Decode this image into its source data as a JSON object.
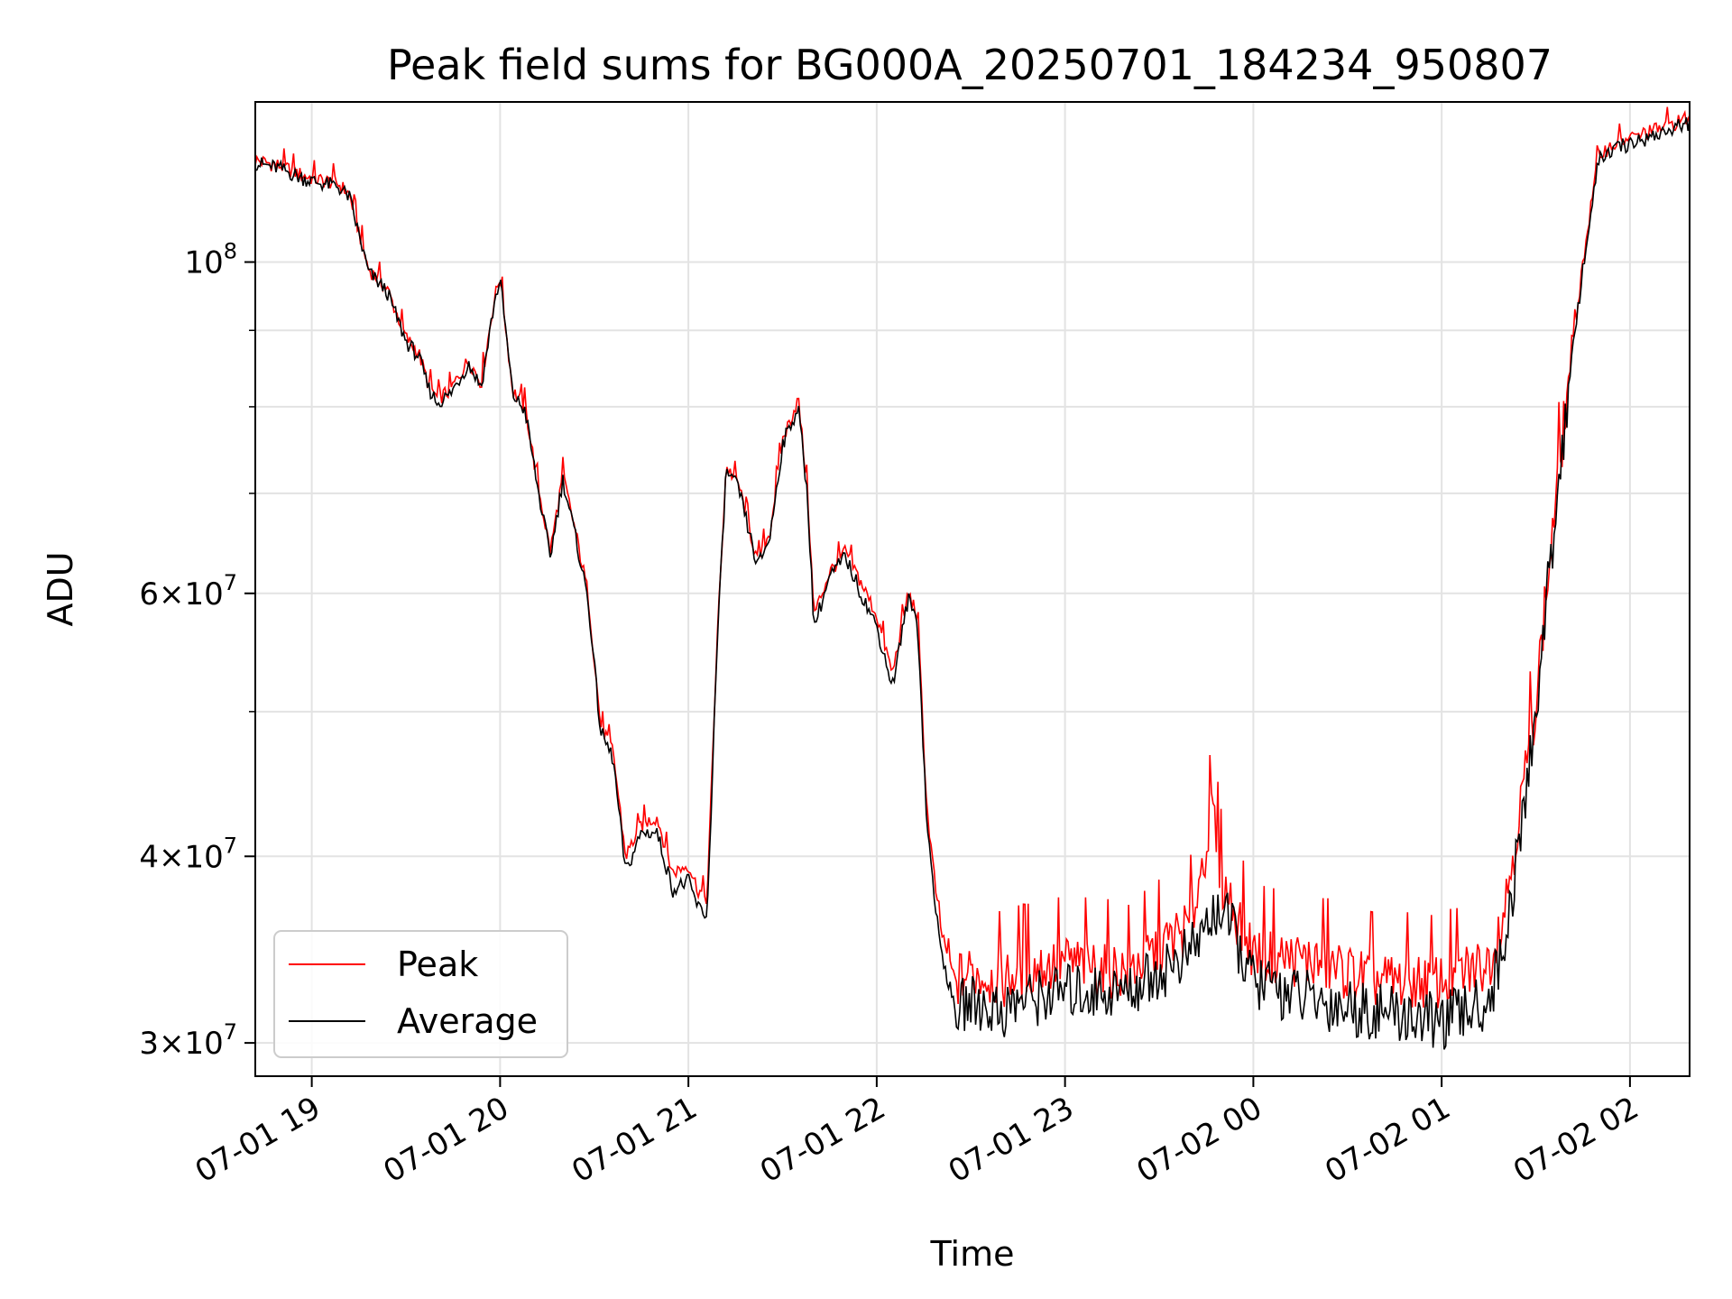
{
  "chart_data": {
    "type": "line",
    "title": "Peak field sums for BG000A_20250701_184234_950807",
    "xlabel": "Time",
    "ylabel": "ADU",
    "yscale": "log",
    "xlim": [
      "2025-07-01 18:42",
      "2025-07-02 02:19"
    ],
    "ylim": [
      28500000,
      128000000
    ],
    "grid": true,
    "legend_position": "lower-left",
    "x_ticks": [
      "07-01 19",
      "07-01 20",
      "07-01 21",
      "07-01 22",
      "07-01 23",
      "07-02 00",
      "07-02 01",
      "07-02 02"
    ],
    "y_ticks": [
      {
        "value": 100000000,
        "base": "10",
        "exp": "8"
      },
      {
        "value": 60000000,
        "base": "6×10",
        "exp": "7"
      },
      {
        "value": 40000000,
        "base": "4×10",
        "exp": "7"
      },
      {
        "value": 30000000,
        "base": "3×10",
        "exp": "7"
      }
    ],
    "y_minor_ticks": [
      50000000,
      70000000,
      80000000,
      90000000
    ],
    "series": [
      {
        "name": "Peak",
        "color": "#ff0000",
        "x": [
          "2025-07-01 18:42",
          "2025-07-01 18:50",
          "2025-07-01 18:56",
          "2025-07-01 19:02",
          "2025-07-01 19:08",
          "2025-07-01 19:12",
          "2025-07-01 19:18",
          "2025-07-01 19:24",
          "2025-07-01 19:30",
          "2025-07-01 19:34",
          "2025-07-01 19:37",
          "2025-07-01 19:40",
          "2025-07-01 19:44",
          "2025-07-01 19:50",
          "2025-07-01 19:54",
          "2025-07-01 19:58",
          "2025-07-01 20:00",
          "2025-07-01 20:04",
          "2025-07-01 20:08",
          "2025-07-01 20:12",
          "2025-07-01 20:16",
          "2025-07-01 20:20",
          "2025-07-01 20:24",
          "2025-07-01 20:28",
          "2025-07-01 20:32",
          "2025-07-01 20:36",
          "2025-07-01 20:40",
          "2025-07-01 20:45",
          "2025-07-01 20:50",
          "2025-07-01 20:55",
          "2025-07-01 21:00",
          "2025-07-01 21:03",
          "2025-07-01 21:06",
          "2025-07-01 21:09",
          "2025-07-01 21:12",
          "2025-07-01 21:16",
          "2025-07-01 21:22",
          "2025-07-01 21:26",
          "2025-07-01 21:30",
          "2025-07-01 21:35",
          "2025-07-01 21:38",
          "2025-07-01 21:40",
          "2025-07-01 21:45",
          "2025-07-01 21:50",
          "2025-07-01 21:55",
          "2025-07-01 22:00",
          "2025-07-01 22:05",
          "2025-07-01 22:10",
          "2025-07-01 22:13",
          "2025-07-01 22:16",
          "2025-07-01 22:20",
          "2025-07-01 22:25",
          "2025-07-01 22:30",
          "2025-07-01 22:40",
          "2025-07-01 22:45",
          "2025-07-01 23:00",
          "2025-07-01 23:20",
          "2025-07-01 23:40",
          "2025-07-01 23:47",
          "2025-07-01 23:50",
          "2025-07-02 00:00",
          "2025-07-02 00:20",
          "2025-07-02 00:40",
          "2025-07-02 01:00",
          "2025-07-02 01:15",
          "2025-07-02 01:20",
          "2025-07-02 01:25",
          "2025-07-02 01:30",
          "2025-07-02 01:35",
          "2025-07-02 01:40",
          "2025-07-02 01:45",
          "2025-07-02 01:50",
          "2025-07-02 01:55",
          "2025-07-02 02:00",
          "2025-07-02 02:10",
          "2025-07-02 02:19"
        ],
        "y": [
          117000000,
          116000000,
          114500000,
          113500000,
          113000000,
          111000000,
          99000000,
          96000000,
          89000000,
          87000000,
          83000000,
          81000000,
          82000000,
          86000000,
          83000000,
          94000000,
          98000000,
          82000000,
          80000000,
          71000000,
          64000000,
          72000000,
          66000000,
          60000000,
          49000000,
          47000000,
          40000000,
          42000000,
          42500000,
          39000000,
          39500000,
          38000000,
          37500000,
          55000000,
          73000000,
          71000000,
          63000000,
          66000000,
          76000000,
          81000000,
          70000000,
          58000000,
          62000000,
          64000000,
          61000000,
          58000000,
          53000000,
          60000000,
          58000000,
          43000000,
          36000000,
          33000000,
          33500000,
          33000000,
          33500000,
          34000000,
          33500000,
          36000000,
          43000000,
          38500000,
          34500000,
          34000000,
          33000000,
          33000000,
          34000000,
          37000000,
          43000000,
          51000000,
          65000000,
          82000000,
          100000000,
          118000000,
          120000000,
          121000000,
          123000000,
          125000000
        ]
      },
      {
        "name": "Average",
        "color": "#000000",
        "x": [
          "2025-07-01 18:42",
          "2025-07-01 18:50",
          "2025-07-01 18:56",
          "2025-07-01 19:02",
          "2025-07-01 19:08",
          "2025-07-01 19:12",
          "2025-07-01 19:18",
          "2025-07-01 19:24",
          "2025-07-01 19:30",
          "2025-07-01 19:34",
          "2025-07-01 19:37",
          "2025-07-01 19:40",
          "2025-07-01 19:44",
          "2025-07-01 19:50",
          "2025-07-01 19:54",
          "2025-07-01 19:58",
          "2025-07-01 20:00",
          "2025-07-01 20:04",
          "2025-07-01 20:08",
          "2025-07-01 20:12",
          "2025-07-01 20:16",
          "2025-07-01 20:20",
          "2025-07-01 20:24",
          "2025-07-01 20:28",
          "2025-07-01 20:32",
          "2025-07-01 20:36",
          "2025-07-01 20:40",
          "2025-07-01 20:45",
          "2025-07-01 20:50",
          "2025-07-01 20:55",
          "2025-07-01 21:00",
          "2025-07-01 21:03",
          "2025-07-01 21:06",
          "2025-07-01 21:09",
          "2025-07-01 21:12",
          "2025-07-01 21:16",
          "2025-07-01 21:22",
          "2025-07-01 21:26",
          "2025-07-01 21:30",
          "2025-07-01 21:35",
          "2025-07-01 21:38",
          "2025-07-01 21:40",
          "2025-07-01 21:45",
          "2025-07-01 21:50",
          "2025-07-01 21:55",
          "2025-07-01 22:00",
          "2025-07-01 22:05",
          "2025-07-01 22:10",
          "2025-07-01 22:13",
          "2025-07-01 22:16",
          "2025-07-01 22:20",
          "2025-07-01 22:25",
          "2025-07-01 22:30",
          "2025-07-01 22:40",
          "2025-07-01 22:45",
          "2025-07-01 23:00",
          "2025-07-01 23:20",
          "2025-07-01 23:40",
          "2025-07-01 23:47",
          "2025-07-01 23:50",
          "2025-07-02 00:00",
          "2025-07-02 00:20",
          "2025-07-02 00:40",
          "2025-07-02 01:00",
          "2025-07-02 01:15",
          "2025-07-02 01:20",
          "2025-07-02 01:25",
          "2025-07-02 01:30",
          "2025-07-02 01:35",
          "2025-07-02 01:40",
          "2025-07-02 01:45",
          "2025-07-02 01:50",
          "2025-07-02 01:55",
          "2025-07-02 02:00",
          "2025-07-02 02:10",
          "2025-07-02 02:19"
        ],
        "y": [
          116500000,
          115500000,
          114000000,
          113000000,
          112500000,
          110500000,
          98500000,
          95500000,
          88500000,
          86500000,
          82500000,
          80500000,
          81500000,
          85500000,
          82500000,
          93500000,
          97500000,
          81500000,
          79500000,
          70500000,
          63500000,
          71500000,
          65500000,
          59500000,
          48500000,
          46500000,
          39000000,
          41500000,
          41500000,
          38000000,
          38500000,
          37000000,
          36500000,
          54500000,
          72500000,
          70500000,
          62500000,
          65500000,
          75500000,
          80000000,
          69500000,
          57000000,
          61500000,
          63500000,
          60000000,
          57000000,
          52000000,
          59500000,
          57500000,
          42000000,
          35000000,
          31500000,
          32000000,
          31500000,
          32000000,
          32500000,
          32500000,
          34500000,
          36500000,
          37000000,
          33000000,
          32000000,
          31500000,
          31000000,
          32000000,
          35000000,
          41000000,
          50000000,
          64000000,
          81000000,
          99000000,
          117000000,
          119000000,
          120000000,
          122000000,
          124000000
        ]
      }
    ]
  }
}
